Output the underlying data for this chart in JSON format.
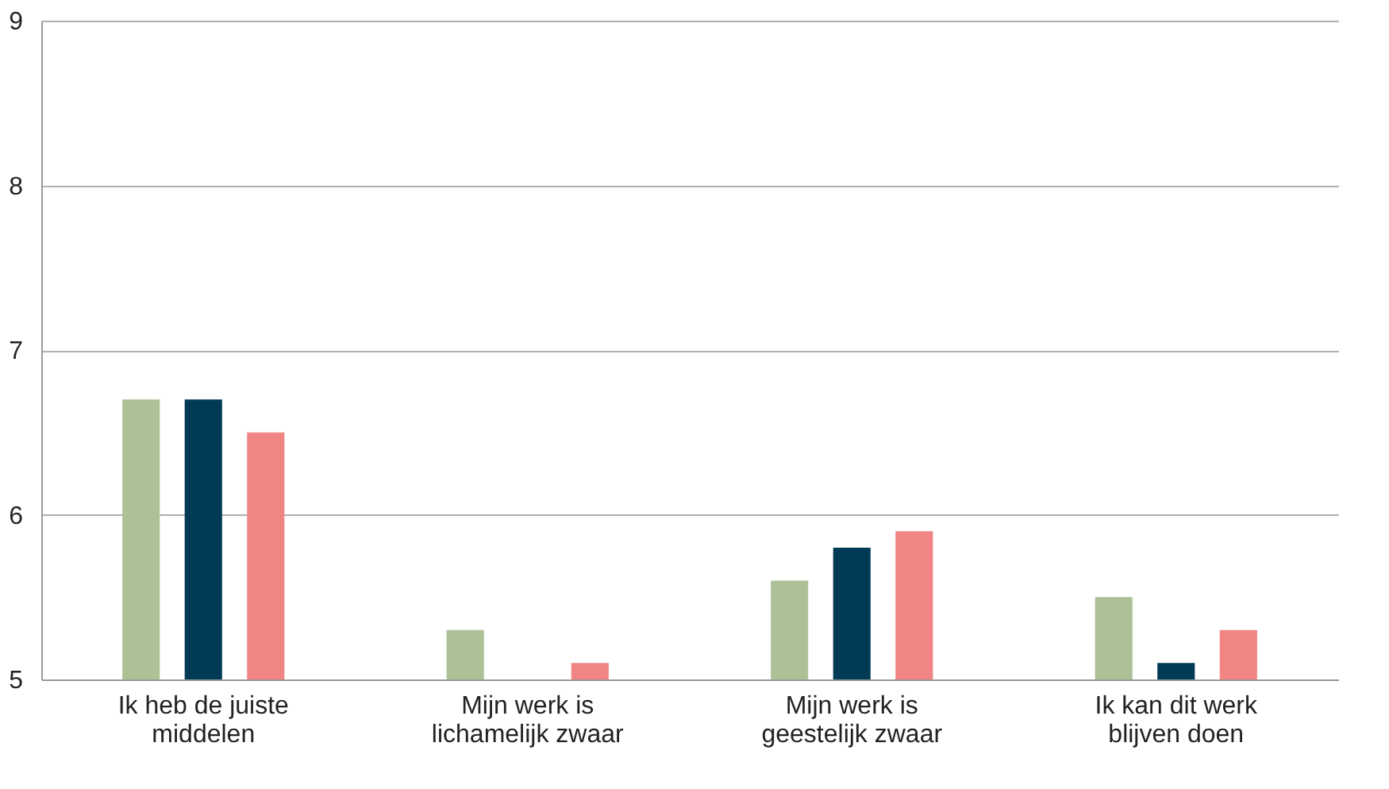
{
  "chart_data": {
    "type": "bar",
    "categories": [
      "Ik heb de juiste\nmiddelen",
      "Mijn werk is\nlichamelijk zwaar",
      "Mijn werk is\ngeestelijk zwaar",
      "Ik kan dit werk\nblijven doen"
    ],
    "series": [
      {
        "color": "#adc197",
        "values": [
          6.7,
          5.3,
          5.6,
          5.5
        ]
      },
      {
        "color": "#003a55",
        "values": [
          6.7,
          5.0,
          5.8,
          5.1
        ]
      },
      {
        "color": "#f08583",
        "values": [
          6.5,
          5.1,
          5.9,
          5.3
        ]
      }
    ],
    "ylim": [
      5,
      9
    ],
    "yticks": [
      5,
      6,
      7,
      8,
      9
    ],
    "grid": "y",
    "legend": false
  }
}
